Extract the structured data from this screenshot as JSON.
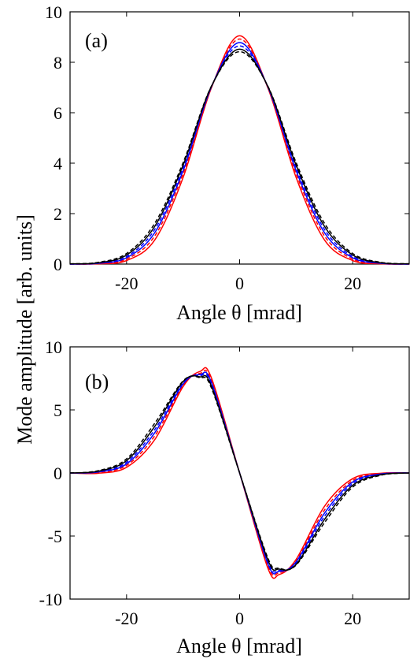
{
  "figure": {
    "ylabel": "Mode amplitude [arb. units]"
  },
  "chart_data": [
    {
      "type": "line",
      "panel_label": "(a)",
      "xlabel": "Angle θ [mrad]",
      "xlim": [
        -30,
        30
      ],
      "ylim": [
        0,
        10
      ],
      "xticks": [
        -20,
        0,
        20
      ],
      "xtick_labels": [
        "-20",
        "0",
        "20"
      ],
      "yticks": [
        0,
        2,
        4,
        6,
        8,
        10
      ],
      "ytick_labels": [
        "0",
        "2",
        "4",
        "6",
        "8",
        "10"
      ],
      "grid": false,
      "colors": {
        "red": "#ff0000",
        "blue": "#0000ff",
        "black": "#000000"
      },
      "series": [
        {
          "color": "#ff0000",
          "style": "solid",
          "x": [
            -30,
            -25,
            -20,
            -15,
            -10,
            -5,
            0,
            5,
            10,
            15,
            20,
            25,
            30
          ],
          "y": [
            0.0,
            0.01,
            0.14,
            0.96,
            3.43,
            6.98,
            9.05,
            6.98,
            3.43,
            0.96,
            0.14,
            0.01,
            0.0
          ]
        },
        {
          "color": "#ff0000",
          "style": "dashed",
          "x": [
            -30,
            -25,
            -20,
            -15,
            -10,
            -5,
            0,
            5,
            10,
            15,
            20,
            25,
            30
          ],
          "y": [
            0.0,
            0.02,
            0.2,
            1.12,
            3.58,
            7.0,
            8.92,
            7.0,
            3.58,
            1.12,
            0.2,
            0.02,
            0.0
          ]
        },
        {
          "color": "#0000ff",
          "style": "solid",
          "x": [
            -30,
            -25,
            -20,
            -15,
            -10,
            -5,
            0,
            5,
            10,
            15,
            20,
            25,
            30
          ],
          "y": [
            0.0,
            0.03,
            0.25,
            1.25,
            3.7,
            7.02,
            8.78,
            7.02,
            3.7,
            1.25,
            0.25,
            0.03,
            0.0
          ]
        },
        {
          "color": "#0000ff",
          "style": "dashed",
          "x": [
            -30,
            -25,
            -20,
            -15,
            -10,
            -5,
            0,
            5,
            10,
            15,
            20,
            25,
            30
          ],
          "y": [
            0.0,
            0.04,
            0.3,
            1.38,
            3.82,
            7.03,
            8.65,
            7.03,
            3.82,
            1.38,
            0.3,
            0.04,
            0.0
          ]
        },
        {
          "color": "#000000",
          "style": "solid",
          "x": [
            -30,
            -25,
            -20,
            -15,
            -10,
            -5,
            0,
            5,
            10,
            15,
            20,
            25,
            30
          ],
          "y": [
            0.01,
            0.05,
            0.36,
            1.5,
            3.92,
            7.04,
            8.52,
            7.04,
            3.92,
            1.5,
            0.36,
            0.05,
            0.01
          ]
        },
        {
          "color": "#000000",
          "style": "dashed",
          "x": [
            -30,
            -25,
            -20,
            -15,
            -10,
            -5,
            0,
            5,
            10,
            15,
            20,
            25,
            30
          ],
          "y": [
            0.01,
            0.07,
            0.42,
            1.62,
            4.02,
            7.05,
            8.42,
            7.05,
            4.02,
            1.62,
            0.42,
            0.07,
            0.01
          ]
        }
      ]
    },
    {
      "type": "line",
      "panel_label": "(b)",
      "xlabel": "Angle θ [mrad]",
      "xlim": [
        -30,
        30
      ],
      "ylim": [
        -10,
        10
      ],
      "xticks": [
        -20,
        0,
        20
      ],
      "xtick_labels": [
        "-20",
        "0",
        "20"
      ],
      "yticks": [
        -10,
        -5,
        0,
        5,
        10
      ],
      "ytick_labels": [
        "-10",
        "-5",
        "0",
        "5",
        "10"
      ],
      "grid": false,
      "colors": {
        "red": "#ff0000",
        "blue": "#0000ff",
        "black": "#000000"
      },
      "series": [
        {
          "color": "#ff0000",
          "style": "solid",
          "x": [
            -30,
            -25,
            -20,
            -15,
            -10,
            -7,
            -5,
            0,
            5,
            7,
            10,
            15,
            20,
            25,
            30
          ],
          "y": [
            0.0,
            -0.02,
            0.45,
            2.65,
            6.85,
            8.05,
            7.55,
            0.0,
            -7.55,
            -8.05,
            -6.85,
            -2.65,
            -0.45,
            -0.02,
            0.0
          ]
        },
        {
          "color": "#ff0000",
          "style": "dashed",
          "x": [
            -30,
            -25,
            -20,
            -15,
            -10,
            -7,
            -5,
            0,
            5,
            7,
            10,
            15,
            20,
            25,
            30
          ],
          "y": [
            0.0,
            0.05,
            0.6,
            2.95,
            6.95,
            7.9,
            7.35,
            0.0,
            -7.35,
            -7.9,
            -6.95,
            -2.95,
            -0.6,
            -0.05,
            0.0
          ]
        },
        {
          "color": "#0000ff",
          "style": "solid",
          "x": [
            -30,
            -25,
            -20,
            -15,
            -10,
            -7,
            -5,
            0,
            5,
            7,
            10,
            15,
            20,
            25,
            30
          ],
          "y": [
            0.0,
            0.08,
            0.72,
            3.2,
            7.05,
            7.8,
            7.2,
            0.0,
            -7.2,
            -7.8,
            -7.05,
            -3.2,
            -0.72,
            -0.08,
            0.0
          ]
        },
        {
          "color": "#0000ff",
          "style": "dashed",
          "x": [
            -30,
            -25,
            -20,
            -15,
            -10,
            -7,
            -5,
            0,
            5,
            7,
            10,
            15,
            20,
            25,
            30
          ],
          "y": [
            0.0,
            0.1,
            0.85,
            3.45,
            7.15,
            7.72,
            7.05,
            0.0,
            -7.05,
            -7.72,
            -7.15,
            -3.45,
            -0.85,
            -0.1,
            0.0
          ]
        },
        {
          "color": "#000000",
          "style": "solid",
          "x": [
            -30,
            -25,
            -20,
            -15,
            -10,
            -7,
            -5,
            0,
            5,
            7,
            10,
            15,
            20,
            25,
            30
          ],
          "y": [
            0.0,
            0.14,
            0.98,
            3.7,
            7.25,
            7.62,
            6.9,
            0.0,
            -6.9,
            -7.62,
            -7.25,
            -3.7,
            -0.98,
            -0.14,
            0.0
          ]
        },
        {
          "color": "#000000",
          "style": "dashed",
          "x": [
            -30,
            -25,
            -20,
            -15,
            -10,
            -7,
            -5,
            0,
            5,
            7,
            10,
            15,
            20,
            25,
            30
          ],
          "y": [
            0.0,
            0.18,
            1.12,
            3.95,
            7.3,
            7.55,
            6.75,
            0.0,
            -6.75,
            -7.55,
            -7.3,
            -3.95,
            -1.12,
            -0.18,
            0.0
          ]
        }
      ]
    }
  ]
}
